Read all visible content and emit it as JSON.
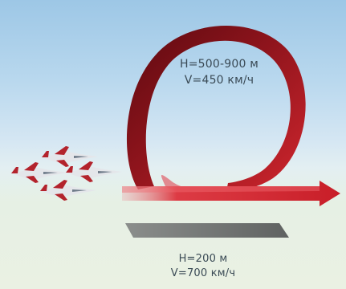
{
  "loop": {
    "height": "H=500-900 м",
    "speed": "V=450 км/ч"
  },
  "low_pass": {
    "height": "H=200 м",
    "speed": "V=700 км/ч"
  },
  "colors": {
    "loop_dark": "#6e0d14",
    "loop_red": "#c8202a",
    "arrow_red": "#d82430",
    "shadow_grey": "#6c6f6e"
  },
  "icons": [
    "jet-icon",
    "arrow-icon"
  ]
}
